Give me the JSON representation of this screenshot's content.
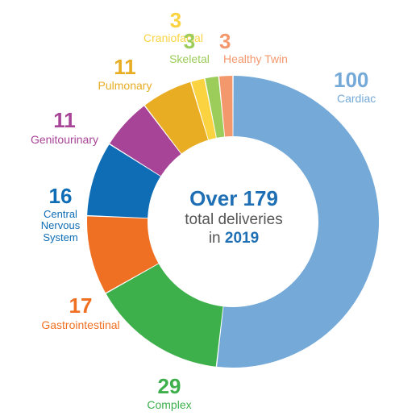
{
  "chart_data": {
    "type": "pie",
    "variant": "donut",
    "slices": [
      {
        "label": "Cardiac",
        "value": 100,
        "color": "#74a9d8"
      },
      {
        "label": "Complex",
        "value": 29,
        "color": "#3db04b"
      },
      {
        "label": "Gastrointestinal",
        "value": 17,
        "color": "#f07023"
      },
      {
        "label": "Central Nervous System",
        "value": 16,
        "color": "#0e6db5"
      },
      {
        "label": "Genitourinary",
        "value": 11,
        "color": "#a84497"
      },
      {
        "label": "Pulmonary",
        "value": 11,
        "color": "#e8ad23"
      },
      {
        "label": "Craniofacial",
        "value": 3,
        "color": "#fbd341"
      },
      {
        "label": "Skeletal",
        "value": 3,
        "color": "#9ccc5a"
      },
      {
        "label": "Healthy Twin",
        "value": 3,
        "color": "#f3986c"
      }
    ],
    "labels": [
      {
        "number": "100",
        "name": "Cardiac",
        "color": "#74a9d8"
      },
      {
        "number": "29",
        "name": "Complex",
        "color": "#3db04b"
      },
      {
        "number": "17",
        "name": "Gastrointestinal",
        "color": "#f07023"
      },
      {
        "number": "16",
        "name": "Central\nNervous\nSystem",
        "color": "#0e6db5"
      },
      {
        "number": "11",
        "name": "Genitourinary",
        "color": "#a84497"
      },
      {
        "number": "11",
        "name": "Pulmonary",
        "color": "#e8ad23"
      },
      {
        "number": "3",
        "name": "Craniofacial",
        "color": "#fbd341"
      },
      {
        "number": "3",
        "name": "Skeletal",
        "color": "#9ccc5a"
      },
      {
        "number": "3",
        "name": "Healthy Twin",
        "color": "#f3986c"
      }
    ],
    "center": {
      "title": "Over 179",
      "line1": "total deliveries",
      "in_word": "in",
      "year": "2019"
    }
  }
}
